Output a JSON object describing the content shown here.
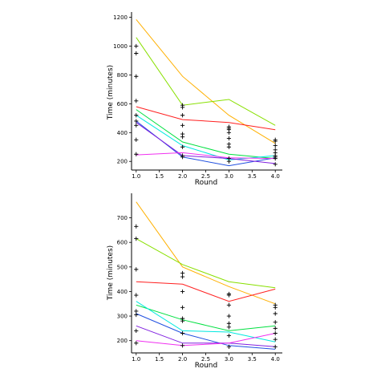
{
  "chart_data": [
    {
      "type": "line",
      "xlabel": "Round",
      "ylabel": "Time (minutes)",
      "xlim": [
        0.9,
        4.1
      ],
      "ylim": [
        140,
        1220
      ],
      "xticks": [
        1.0,
        1.5,
        2.0,
        2.5,
        3.0,
        3.5,
        4.0
      ],
      "xtick_labels": [
        "1.0",
        "1.5",
        "2.0",
        "2.5",
        "3.0",
        "3.5",
        "4.0"
      ],
      "yticks": [
        200,
        400,
        600,
        800,
        1000,
        1200
      ],
      "ytick_labels": [
        "200",
        "400",
        "600",
        "800",
        "1000",
        "1200"
      ],
      "grid": false,
      "series": [
        {
          "color": "#ffb000",
          "x": [
            1,
            2,
            3,
            4
          ],
          "y": [
            1185,
            790,
            520,
            325
          ]
        },
        {
          "color": "#88e000",
          "x": [
            1,
            2,
            3,
            4
          ],
          "y": [
            1060,
            590,
            630,
            450
          ]
        },
        {
          "color": "#ff2020",
          "x": [
            1,
            2,
            3,
            4
          ],
          "y": [
            580,
            490,
            470,
            420
          ]
        },
        {
          "color": "#00e040",
          "x": [
            1,
            2,
            3,
            4
          ],
          "y": [
            560,
            335,
            250,
            220
          ]
        },
        {
          "color": "#00e8e0",
          "x": [
            1,
            2,
            3,
            4
          ],
          "y": [
            520,
            310,
            210,
            240
          ]
        },
        {
          "color": "#2050e0",
          "x": [
            1,
            2,
            3,
            4
          ],
          "y": [
            480,
            230,
            170,
            225
          ]
        },
        {
          "color": "#8020e0",
          "x": [
            1,
            2,
            3,
            4
          ],
          "y": [
            470,
            240,
            220,
            185
          ]
        },
        {
          "color": "#f030f0",
          "x": [
            1,
            2,
            3,
            4
          ],
          "y": [
            245,
            260,
            225,
            220
          ]
        }
      ],
      "points": {
        "x": [
          1,
          1,
          1,
          1,
          1,
          1,
          1,
          1,
          1,
          2,
          2,
          2,
          2,
          2,
          2,
          2,
          2,
          2,
          3,
          3,
          3,
          3,
          3,
          3,
          3,
          3,
          3,
          4,
          4,
          4,
          4,
          4,
          4,
          4,
          4,
          4
        ],
        "y": [
          1000,
          950,
          790,
          620,
          520,
          480,
          450,
          350,
          250,
          590,
          575,
          520,
          450,
          390,
          370,
          300,
          240,
          230,
          440,
          430,
          420,
          400,
          360,
          320,
          300,
          220,
          200,
          350,
          340,
          310,
          280,
          260,
          240,
          230,
          220,
          180
        ]
      }
    },
    {
      "type": "line",
      "xlabel": "Round",
      "ylabel": "Time (minutes)",
      "xlim": [
        0.9,
        4.1
      ],
      "ylim": [
        150,
        790
      ],
      "xticks": [
        1.0,
        1.5,
        2.0,
        2.5,
        3.0,
        3.5,
        4.0
      ],
      "xtick_labels": [
        "1.0",
        "1.5",
        "2.0",
        "2.5",
        "3.0",
        "3.5",
        "4.0"
      ],
      "yticks": [
        200,
        300,
        400,
        500,
        600,
        700
      ],
      "ytick_labels": [
        "200",
        "300",
        "400",
        "500",
        "600",
        "700"
      ],
      "grid": false,
      "series": [
        {
          "color": "#ffb000",
          "x": [
            1,
            2,
            3,
            4
          ],
          "y": [
            765,
            500,
            420,
            350
          ]
        },
        {
          "color": "#88e000",
          "x": [
            1,
            2,
            3,
            4
          ],
          "y": [
            615,
            510,
            440,
            415
          ]
        },
        {
          "color": "#ff2020",
          "x": [
            1,
            2,
            3,
            4
          ],
          "y": [
            440,
            430,
            360,
            410
          ]
        },
        {
          "color": "#00e040",
          "x": [
            1,
            2,
            3,
            4
          ],
          "y": [
            345,
            285,
            240,
            260
          ]
        },
        {
          "color": "#00e8e0",
          "x": [
            1,
            2,
            3,
            4
          ],
          "y": [
            360,
            240,
            235,
            195
          ]
        },
        {
          "color": "#2050e0",
          "x": [
            1,
            2,
            3,
            4
          ],
          "y": [
            310,
            230,
            180,
            165
          ]
        },
        {
          "color": "#8020e0",
          "x": [
            1,
            2,
            3,
            4
          ],
          "y": [
            260,
            190,
            190,
            175
          ]
        },
        {
          "color": "#f030f0",
          "x": [
            1,
            2,
            3,
            4
          ],
          "y": [
            200,
            180,
            190,
            230
          ]
        }
      ],
      "points": {
        "x": [
          1,
          1,
          1,
          1,
          1,
          1,
          1,
          1,
          2,
          2,
          2,
          2,
          2,
          2,
          2,
          2,
          3,
          3,
          3,
          3,
          3,
          3,
          3,
          3,
          4,
          4,
          4,
          4,
          4,
          4,
          4,
          4
        ],
        "y": [
          665,
          615,
          490,
          385,
          320,
          305,
          240,
          190,
          475,
          460,
          400,
          335,
          290,
          280,
          230,
          180,
          390,
          385,
          345,
          300,
          270,
          255,
          220,
          175,
          345,
          335,
          310,
          275,
          250,
          230,
          205,
          175
        ]
      }
    }
  ]
}
